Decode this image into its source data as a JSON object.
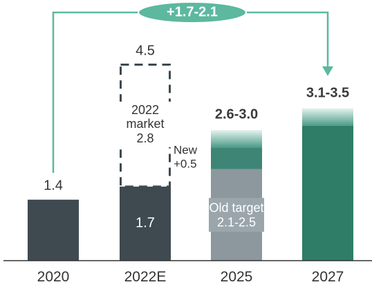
{
  "chart_data": {
    "type": "bar",
    "categories": [
      "2020",
      "2022E",
      "2025",
      "2027"
    ],
    "bars": [
      {
        "value": 1.4,
        "color": "#3f4950"
      },
      {
        "value": 1.7,
        "color": "#3f4950",
        "total": 4.5,
        "market": {
          "name": "2022 market",
          "value": 2.8
        }
      },
      {
        "old": {
          "name": "Old target",
          "low": 2.1,
          "high": 2.5,
          "label": "2.1-2.5",
          "color": "#8c989e"
        },
        "new": {
          "name": "New",
          "value": 0.5,
          "label": "+0.5",
          "color": "#3e8575"
        },
        "range": {
          "low": 2.6,
          "high": 3.0,
          "label": "2.6-3.0"
        }
      },
      {
        "range": {
          "low": 3.1,
          "high": 3.5,
          "label": "3.1-3.5"
        },
        "color": "#2f7d67"
      }
    ],
    "annotation": "+1.7-2.1",
    "annotation_color": "#5cb89f"
  }
}
